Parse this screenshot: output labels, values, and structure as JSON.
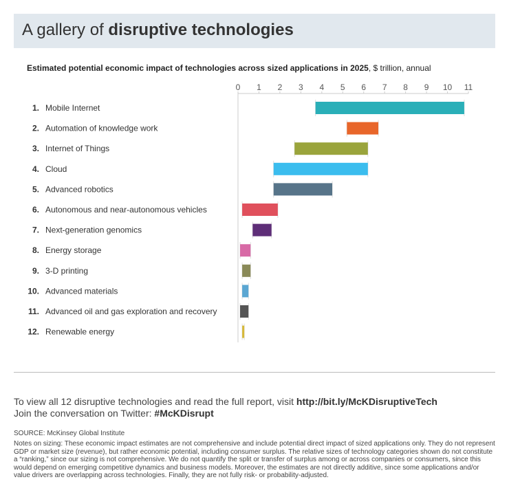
{
  "title_prefix": "A gallery of ",
  "title_bold": "disruptive technologies",
  "chart_data": {
    "type": "bar",
    "orientation": "horizontal-floating-range",
    "title": "Estimated potential economic impact of technologies across sized applications in 2025",
    "unit": ", $ trillion, annual",
    "xlim": [
      0,
      11
    ],
    "ticks": [
      "0",
      "1",
      "2",
      "3",
      "4",
      "5",
      "6",
      "7",
      "8",
      "9",
      "10",
      "11"
    ],
    "categories": [
      {
        "rank": "1.",
        "label": "Mobile Internet",
        "low": 3.7,
        "high": 10.8,
        "color": "#2aafb8"
      },
      {
        "rank": "2.",
        "label": "Automation of knowledge work",
        "low": 5.2,
        "high": 6.7,
        "color": "#e8662a"
      },
      {
        "rank": "3.",
        "label": "Internet of Things",
        "low": 2.7,
        "high": 6.2,
        "color": "#9aa43c"
      },
      {
        "rank": "4.",
        "label": "Cloud",
        "low": 1.7,
        "high": 6.2,
        "color": "#3bbdee"
      },
      {
        "rank": "5.",
        "label": "Advanced robotics",
        "low": 1.7,
        "high": 4.5,
        "color": "#577489"
      },
      {
        "rank": "6.",
        "label": "Autonomous and near-autonomous vehicles",
        "low": 0.2,
        "high": 1.9,
        "color": "#e0505c"
      },
      {
        "rank": "7.",
        "label": "Next-generation genomics",
        "low": 0.7,
        "high": 1.6,
        "color": "#5e2e78"
      },
      {
        "rank": "8.",
        "label": "Energy storage",
        "low": 0.1,
        "high": 0.6,
        "color": "#d86aa6"
      },
      {
        "rank": "9.",
        "label": "3-D printing",
        "low": 0.2,
        "high": 0.6,
        "color": "#8a8a58"
      },
      {
        "rank": "10.",
        "label": "Advanced materials",
        "low": 0.2,
        "high": 0.5,
        "color": "#5aa6d2"
      },
      {
        "rank": "11.",
        "label": "Advanced oil and gas exploration and recovery",
        "low": 0.1,
        "high": 0.5,
        "color": "#555555"
      },
      {
        "rank": "12.",
        "label": "Renewable energy",
        "low": 0.2,
        "high": 0.3,
        "color": "#d6b93a"
      }
    ]
  },
  "cta": {
    "line1_text": "To view all 12 disruptive technologies and read the full report, visit ",
    "line1_link": "http://bit.ly/McKDisruptiveTech",
    "line2_text": "Join the conversation on Twitter: ",
    "line2_tag": "#McKDisrupt"
  },
  "source": "SOURCE: McKinsey Global Institute",
  "notes": "Notes on sizing: These economic impact estimates are not comprehensive and include potential direct impact of sized applications only. They do not represent GDP or market size (revenue), but rather economic potential, including consumer surplus. The relative sizes of technology categories shown do not constitute a “ranking,” since our sizing is not comprehensive. We do not quantify the split or transfer of surplus among or across companies or consumers, since this would depend on emerging competitive dynamics and business models. Moreover, the estimates are not directly additive, since some applications and/or value drivers are overlapping across technologies. Finally, they are not fully risk- or probability-adjusted."
}
